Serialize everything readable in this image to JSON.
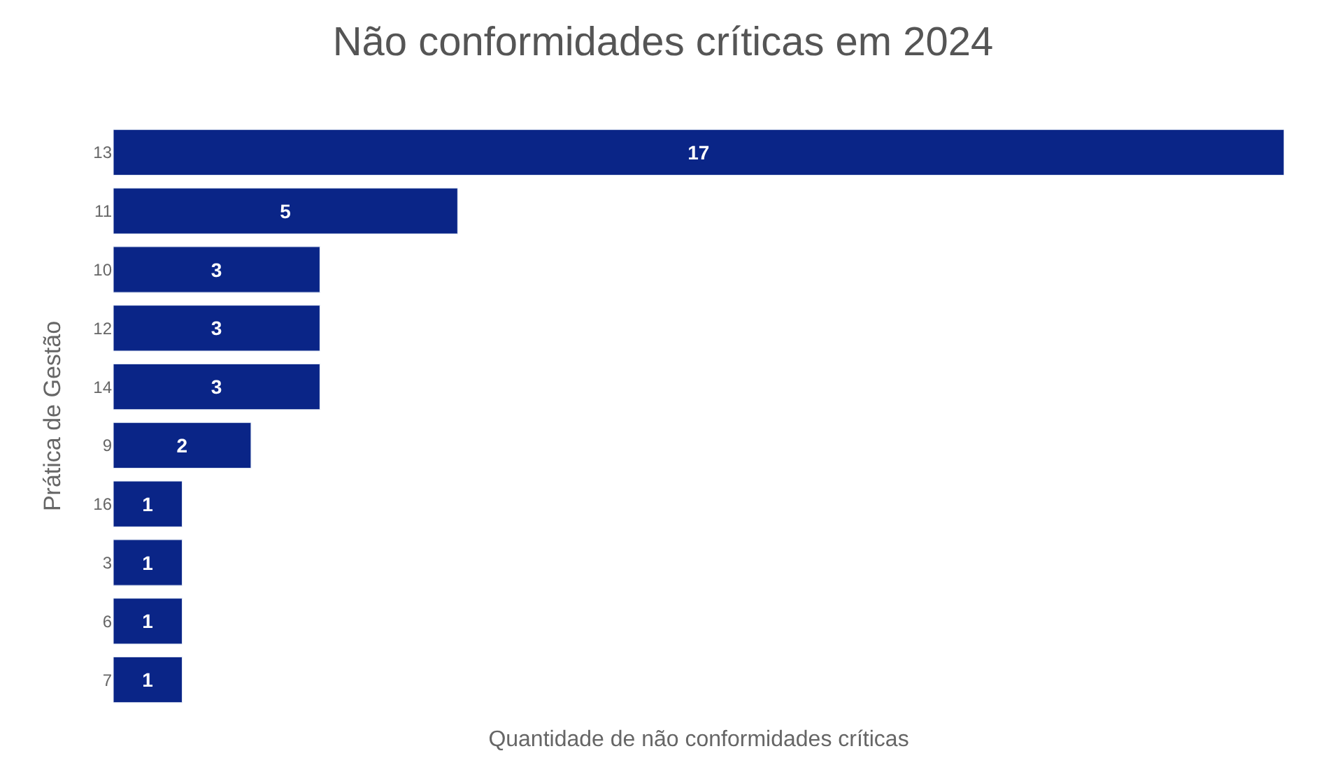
{
  "chart_data": {
    "type": "bar",
    "orientation": "horizontal",
    "title": "Não conformidades críticas em 2024",
    "xlabel": "Quantidade de não conformidades críticas",
    "ylabel": "Prática de Gestão",
    "categories": [
      "13",
      "11",
      "10",
      "12",
      "14",
      "9",
      "16",
      "3",
      "6",
      "7"
    ],
    "values": [
      17,
      5,
      3,
      3,
      3,
      2,
      1,
      1,
      1,
      1
    ],
    "color": "#0a2587",
    "xlim": [
      0,
      17
    ],
    "data_labels": true,
    "tick_labels": "y"
  }
}
